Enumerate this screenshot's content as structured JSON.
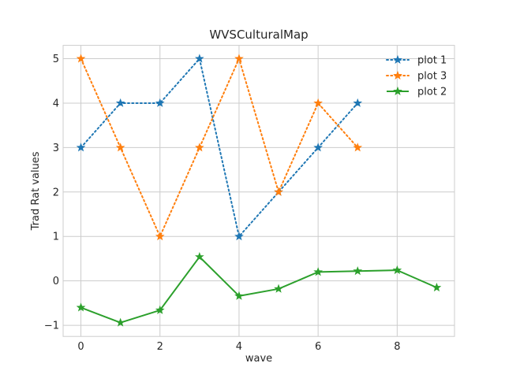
{
  "chart_data": {
    "type": "line",
    "title": "WVSCulturalMap",
    "xlabel": "wave",
    "ylabel": "Trad Rat values",
    "xlim": [
      -0.45,
      9.45
    ],
    "ylim": [
      -1.25,
      5.3
    ],
    "x_ticks": [
      0,
      2,
      4,
      6,
      8
    ],
    "y_ticks": [
      -1,
      0,
      1,
      2,
      3,
      4,
      5
    ],
    "x_tick_labels": [
      "0",
      "2",
      "4",
      "6",
      "8"
    ],
    "y_tick_labels": [
      "−1",
      "0",
      "1",
      "2",
      "3",
      "4",
      "5"
    ],
    "grid": true,
    "legend_position": "top-right",
    "series": [
      {
        "name": "plot 1",
        "color": "#1f77b4",
        "linestyle": "dotted",
        "marker": "star",
        "x": [
          0,
          1,
          2,
          3,
          4,
          5,
          6,
          7
        ],
        "y": [
          3,
          4,
          4,
          5,
          1,
          2,
          3,
          4
        ]
      },
      {
        "name": "plot 3",
        "color": "#ff7f0e",
        "linestyle": "dotted",
        "marker": "star",
        "x": [
          0,
          1,
          2,
          3,
          4,
          5,
          6,
          7
        ],
        "y": [
          5,
          3,
          1,
          3,
          5,
          2,
          4,
          3
        ]
      },
      {
        "name": "plot 2",
        "color": "#2ca02c",
        "linestyle": "solid",
        "marker": "star",
        "x": [
          0,
          1,
          2,
          3,
          4,
          5,
          6,
          7,
          8,
          9
        ],
        "y": [
          -0.6,
          -0.94,
          -0.66,
          0.54,
          -0.34,
          -0.18,
          0.2,
          0.22,
          0.24,
          -0.15
        ]
      }
    ]
  }
}
